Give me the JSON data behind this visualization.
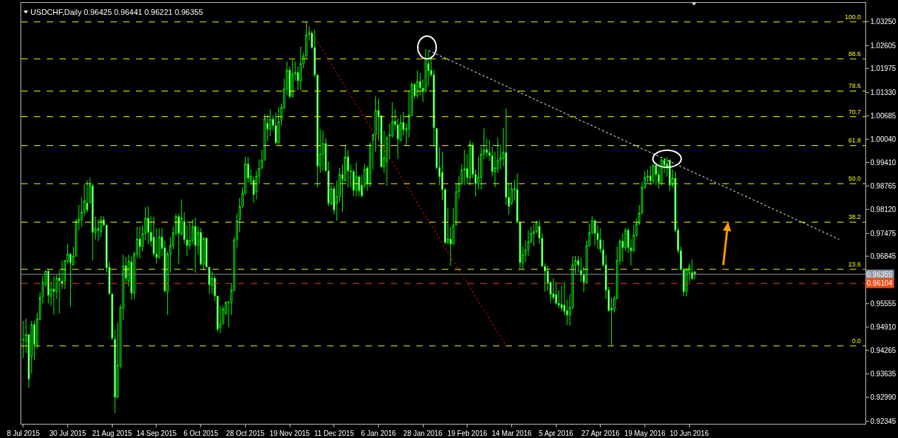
{
  "chart_data": {
    "type": "candlestick",
    "title": "USDCHF,Daily 0.96425 0.96441 0.96221 0.96355",
    "color": "#00ff00",
    "categories": [
      "8 Jul 2015",
      null,
      null,
      null,
      null,
      null,
      null,
      null,
      null,
      null,
      null,
      null,
      null,
      null,
      null,
      null,
      "30 Jul 2015",
      null,
      null,
      null,
      null,
      null,
      null,
      null,
      null,
      null,
      null,
      null,
      null,
      null,
      null,
      null,
      "21 Aug 2015",
      null,
      null,
      null,
      null,
      null,
      null,
      null,
      null,
      null,
      null,
      null,
      null,
      null,
      null,
      null,
      "14 Sep 2015",
      null,
      null,
      null,
      null,
      null,
      null,
      null,
      null,
      null,
      null,
      null,
      null,
      null,
      null,
      null,
      "6 Oct 2015",
      null,
      null,
      null,
      null,
      null,
      null,
      null,
      null,
      null,
      null,
      null,
      null,
      null,
      null,
      null,
      "28 Oct 2015",
      null,
      null,
      null,
      null,
      null,
      null,
      null,
      null,
      null,
      null,
      null,
      null,
      null,
      null,
      null,
      "19 Nov 2015",
      null,
      null,
      null,
      null,
      null,
      null,
      null,
      null,
      null,
      null,
      null,
      null,
      null,
      null,
      null,
      "11 Dec 2015",
      null,
      null,
      null,
      null,
      null,
      null,
      null,
      null,
      null,
      null,
      null,
      null,
      null,
      null,
      null,
      "6 Jan 2016",
      null,
      null,
      null,
      null,
      null,
      null,
      null,
      null,
      null,
      null,
      null,
      null,
      null,
      null,
      null,
      "28 Jan 2016",
      null,
      null,
      null,
      null,
      null,
      null,
      null,
      null,
      null,
      null,
      null,
      null,
      null,
      null,
      null,
      "19 Feb 2016",
      null,
      null,
      null,
      null,
      null,
      null,
      null,
      null,
      null,
      null,
      null,
      null,
      null,
      null,
      null,
      "14 Mar 2016",
      null,
      null,
      null,
      null,
      null,
      null,
      null,
      null,
      null,
      null,
      null,
      null,
      null,
      null,
      null,
      "5 Apr 2016",
      null,
      null,
      null,
      null,
      null,
      null,
      null,
      null,
      null,
      null,
      null,
      null,
      null,
      null,
      null,
      "27 Apr 2016",
      null,
      null,
      null,
      null,
      null,
      null,
      null,
      null,
      null,
      null,
      null,
      null,
      null,
      null,
      null,
      "19 May 2016",
      null,
      null,
      null,
      null,
      null,
      null,
      null,
      null,
      null,
      null,
      null,
      null,
      null,
      null,
      null,
      "10 Jun 2016",
      null,
      null,
      null,
      null,
      null,
      null,
      null,
      null,
      null,
      null,
      null,
      null,
      null,
      null,
      null,
      null,
      null,
      null,
      null,
      null,
      null,
      null,
      null,
      null,
      null,
      null,
      null,
      null,
      null,
      null,
      null,
      null,
      null,
      null,
      null,
      null,
      null,
      null,
      null,
      null,
      null,
      null,
      null,
      null,
      null,
      null,
      null,
      null,
      null,
      null,
      null,
      null,
      null,
      null,
      null,
      null,
      null,
      null,
      null,
      null,
      null,
      null,
      null
    ],
    "ohlc": [
      [
        0.9456,
        0.9508,
        0.9407,
        0.9458
      ],
      [
        0.9452,
        0.9514,
        0.9421,
        0.9471
      ],
      [
        0.9471,
        0.9471,
        0.9326,
        0.9349
      ],
      [
        0.9411,
        0.9508,
        0.9364,
        0.9498
      ],
      [
        0.9498,
        0.9508,
        0.9401,
        0.9444
      ],
      [
        0.9444,
        0.953,
        0.9433,
        0.9514
      ],
      [
        0.9512,
        0.9586,
        0.951,
        0.9572
      ],
      [
        0.9575,
        0.9631,
        0.9556,
        0.9614
      ],
      [
        0.9607,
        0.9646,
        0.9601,
        0.9644
      ],
      [
        0.9644,
        0.9648,
        0.9556,
        0.9578
      ],
      [
        0.9575,
        0.9615,
        0.9549,
        0.9595
      ],
      [
        0.9595,
        0.9631,
        0.9524,
        0.9588
      ],
      [
        0.9588,
        0.9634,
        0.9568,
        0.9625
      ],
      [
        0.9625,
        0.9646,
        0.9528,
        0.9617
      ],
      [
        0.9617,
        0.9673,
        0.9595,
        0.9609
      ],
      [
        0.9617,
        0.9673,
        0.9595,
        0.9673
      ],
      [
        0.9672,
        0.9718,
        0.9665,
        0.9691
      ],
      [
        0.9691,
        0.9692,
        0.9547,
        0.9667
      ],
      [
        0.9661,
        0.9711,
        0.9659,
        0.9685
      ],
      [
        0.9685,
        0.9788,
        0.9685,
        0.978
      ],
      [
        0.978,
        0.9825,
        0.9756,
        0.9786
      ],
      [
        0.9784,
        0.9846,
        0.9766,
        0.9805
      ],
      [
        0.9805,
        0.9881,
        0.9795,
        0.9836
      ],
      [
        0.983,
        0.9892,
        0.9805,
        0.9811
      ],
      [
        0.983,
        0.99,
        0.983,
        0.9879
      ],
      [
        0.9877,
        0.9883,
        0.9673,
        0.975
      ],
      [
        0.975,
        0.9793,
        0.973,
        0.976
      ],
      [
        0.976,
        0.9786,
        0.9726,
        0.9756
      ],
      [
        0.9752,
        0.9795,
        0.9737,
        0.9784
      ],
      [
        0.9784,
        0.9793,
        0.9766,
        0.977
      ],
      [
        0.977,
        0.977,
        0.964,
        0.9653
      ],
      [
        0.9655,
        0.9669,
        0.9582,
        0.9582
      ],
      [
        0.9582,
        0.9582,
        0.9456,
        0.9461
      ],
      [
        0.9458,
        0.9485,
        0.9256,
        0.9299
      ],
      [
        0.9299,
        0.9504,
        0.9299,
        0.9388
      ],
      [
        0.9386,
        0.9553,
        0.9378,
        0.9545
      ],
      [
        0.9543,
        0.9689,
        0.951,
        0.9659
      ],
      [
        0.9659,
        0.9683,
        0.9611,
        0.9625
      ],
      [
        0.9617,
        0.9689,
        0.9601,
        0.9671
      ],
      [
        0.9669,
        0.9685,
        0.9566,
        0.9584
      ],
      [
        0.9584,
        0.9698,
        0.9568,
        0.9691
      ],
      [
        0.9691,
        0.9766,
        0.9679,
        0.9732
      ],
      [
        0.9732,
        0.9766,
        0.9679,
        0.9711
      ],
      [
        0.9712,
        0.977,
        0.9698,
        0.9747
      ],
      [
        0.9747,
        0.9819,
        0.9728,
        0.9789
      ],
      [
        0.9789,
        0.9821,
        0.9718,
        0.975
      ],
      [
        0.975,
        0.9795,
        0.9712,
        0.9726
      ],
      [
        0.9737,
        0.9793,
        0.9685,
        0.9691
      ],
      [
        0.9691,
        0.9762,
        0.9665,
        0.9681
      ],
      [
        0.9681,
        0.9762,
        0.9679,
        0.9737
      ],
      [
        0.9737,
        0.9762,
        0.9685,
        0.9706
      ],
      [
        0.9708,
        0.9728,
        0.9586,
        0.959
      ],
      [
        0.9588,
        0.9698,
        0.9524,
        0.9691
      ],
      [
        0.9691,
        0.9737,
        0.964,
        0.9714
      ],
      [
        0.9714,
        0.9766,
        0.9704,
        0.9749
      ],
      [
        0.9749,
        0.9801,
        0.9741,
        0.9793
      ],
      [
        0.9793,
        0.9801,
        0.9663,
        0.9747
      ],
      [
        0.9745,
        0.984,
        0.9741,
        0.9789
      ],
      [
        0.978,
        0.9805,
        0.9718,
        0.973
      ],
      [
        0.973,
        0.977,
        0.9685,
        0.9714
      ],
      [
        0.9714,
        0.9776,
        0.9704,
        0.9728
      ],
      [
        0.9728,
        0.9786,
        0.9718,
        0.9766
      ],
      [
        0.9766,
        0.9791,
        0.964,
        0.9714
      ],
      [
        0.9714,
        0.9766,
        0.9689,
        0.975
      ],
      [
        0.975,
        0.9762,
        0.9659,
        0.9663
      ],
      [
        0.9663,
        0.9737,
        0.9646,
        0.9734
      ],
      [
        0.9734,
        0.9737,
        0.9655,
        0.9655
      ],
      [
        0.9655,
        0.9655,
        0.9582,
        0.9607
      ],
      [
        0.9605,
        0.9644,
        0.9582,
        0.9625
      ],
      [
        0.9625,
        0.9631,
        0.9562,
        0.9576
      ],
      [
        0.9576,
        0.9576,
        0.9479,
        0.9485
      ],
      [
        0.9489,
        0.9549,
        0.9475,
        0.95
      ],
      [
        0.95,
        0.9549,
        0.95,
        0.9541
      ],
      [
        0.9528,
        0.9562,
        0.9524,
        0.9559
      ],
      [
        0.9559,
        0.9562,
        0.9491,
        0.956
      ],
      [
        0.9559,
        0.9611,
        0.9524,
        0.9592
      ],
      [
        0.959,
        0.9737,
        0.959,
        0.973
      ],
      [
        0.973,
        0.9801,
        0.9708,
        0.9782
      ],
      [
        0.9786,
        0.9844,
        0.975,
        0.9821
      ],
      [
        0.9821,
        0.9873,
        0.9817,
        0.9857
      ],
      [
        0.9857,
        0.9956,
        0.9853,
        0.9937
      ],
      [
        0.9937,
        0.9956,
        0.9886,
        0.9898
      ],
      [
        0.9888,
        0.9922,
        0.9879,
        0.9904
      ],
      [
        0.9892,
        0.9902,
        0.983,
        0.9853
      ],
      [
        0.9861,
        0.9918,
        0.984,
        0.9904
      ],
      [
        0.9904,
        0.995,
        0.9883,
        0.9925
      ],
      [
        0.9927,
        0.9976,
        0.9922,
        0.9947
      ],
      [
        0.9947,
        1.0073,
        0.9947,
        1.0061
      ],
      [
        1.0048,
        1.0071,
        0.9999,
        1.0032
      ],
      [
        1.0032,
        1.0085,
        1.0013,
        1.0059
      ],
      [
        1.0059,
        1.0069,
        1.0028,
        1.0042
      ],
      [
        1.0042,
        1.0077,
        0.9989,
        0.9995
      ],
      [
        0.9995,
        1.0092,
        0.9989,
        1.0053
      ],
      [
        1.0057,
        1.0102,
        1.0042,
        1.0092
      ],
      [
        1.009,
        1.017,
        1.0086,
        1.0142
      ],
      [
        1.0142,
        1.0217,
        1.0125,
        1.0193
      ],
      [
        1.0193,
        1.0203,
        1.0116,
        1.0121
      ],
      [
        1.0121,
        1.0222,
        1.0119,
        1.0183
      ],
      [
        1.0183,
        1.0217,
        1.0164,
        1.0187
      ],
      [
        1.0187,
        1.0203,
        1.0138,
        1.0164
      ],
      [
        1.0164,
        1.0257,
        1.0138,
        1.0211
      ],
      [
        1.0211,
        1.0241,
        1.0199,
        1.0232
      ],
      [
        1.0232,
        1.0325,
        1.0226,
        1.029
      ],
      [
        1.029,
        1.0313,
        1.0275,
        1.0294
      ],
      [
        1.0294,
        1.03,
        1.0251,
        1.0255
      ],
      [
        1.0255,
        1.0304,
        1.0174,
        1.018
      ],
      [
        1.018,
        1.018,
        0.9873,
        0.9931
      ],
      [
        0.9931,
        1.0032,
        0.9912,
        0.9964
      ],
      [
        0.9964,
        1.0028,
        0.9918,
        0.9993
      ],
      [
        0.9993,
        1.0007,
        0.9916,
        0.9918
      ],
      [
        0.9918,
        0.9943,
        0.9821,
        0.9829
      ],
      [
        0.9827,
        0.9879,
        0.9825,
        0.9869
      ],
      [
        0.9869,
        0.9879,
        0.9799,
        0.9811
      ],
      [
        0.983,
        0.9892,
        0.9782,
        0.9848
      ],
      [
        0.9848,
        0.9926,
        0.9834,
        0.9908
      ],
      [
        0.9908,
        0.9935,
        0.9805,
        0.9896
      ],
      [
        0.9892,
        0.9989,
        0.9886,
        0.9956
      ],
      [
        0.9956,
        0.9974,
        0.9873,
        0.9918
      ],
      [
        0.9918,
        0.9935,
        0.9873,
        0.9916
      ],
      [
        0.9916,
        0.9922,
        0.9849,
        0.9865
      ],
      [
        0.9865,
        0.9941,
        0.9848,
        0.9902
      ],
      [
        0.9902,
        0.9906,
        0.9849,
        0.9863
      ],
      [
        0.9879,
        0.9908,
        0.9848,
        0.9849
      ],
      [
        0.9877,
        0.9937,
        0.9871,
        0.9922
      ],
      [
        0.9926,
        0.9931,
        0.9863,
        0.9883
      ],
      [
        0.9883,
        0.9995,
        0.9873,
        0.9989
      ],
      [
        1.0003,
        1.0019,
        0.9922,
        1.0017
      ],
      [
        1.0017,
        1.0121,
        0.997,
        1.0083
      ],
      [
        1.0083,
        1.0116,
        0.9999,
        1.0067
      ],
      [
        1.0069,
        1.0069,
        0.9927,
        0.9929
      ],
      [
        0.9929,
        1.0028,
        0.9912,
        0.9954
      ],
      [
        0.9943,
        1.0013,
        0.9877,
        1.0009
      ],
      [
        1.0013,
        1.0048,
        0.995,
        1.0017
      ],
      [
        1.0013,
        1.0106,
        1.0009,
        1.0053
      ],
      [
        1.0053,
        1.0086,
        1.0028,
        1.0044
      ],
      [
        1.0044,
        1.0061,
        0.995,
        1.0005
      ],
      [
        1.0001,
        1.0071,
        0.9999,
        1.005
      ],
      [
        1.005,
        1.0079,
        1.0015,
        1.003
      ],
      [
        1.003,
        1.0048,
        0.9987,
        1.0034
      ],
      [
        1.0034,
        1.0138,
        1.0009,
        1.0071
      ],
      [
        1.0069,
        1.016,
        1.0067,
        1.0154
      ],
      [
        1.0154,
        1.0158,
        1.0116,
        1.0123
      ],
      [
        1.0123,
        1.0193,
        1.0116,
        1.0162
      ],
      [
        1.0162,
        1.0185,
        1.0125,
        1.0144
      ],
      [
        1.0144,
        1.0168,
        1.0106,
        1.0135
      ],
      [
        1.0135,
        1.0251,
        1.0133,
        1.0226
      ],
      [
        1.0211,
        1.0245,
        1.015,
        1.0191
      ],
      [
        1.0193,
        1.0232,
        1.0174,
        1.018
      ],
      [
        1.018,
        1.0193,
        0.9984,
        1.0036
      ],
      [
        1.0034,
        1.0034,
        0.9922,
        0.9927
      ],
      [
        0.9927,
        0.9982,
        0.9879,
        0.9902
      ],
      [
        0.9914,
        0.997,
        0.9838,
        0.9867
      ],
      [
        0.9867,
        0.9871,
        0.9718,
        0.9722
      ],
      [
        0.9722,
        0.9817,
        0.9718,
        0.9732
      ],
      [
        0.9732,
        0.9766,
        0.9659,
        0.9718
      ],
      [
        0.9718,
        0.9817,
        0.9718,
        0.977
      ],
      [
        0.977,
        0.9883,
        0.977,
        0.9861
      ],
      [
        0.9861,
        0.9904,
        0.9842,
        0.9883
      ],
      [
        0.9883,
        0.9937,
        0.9879,
        0.992
      ],
      [
        0.992,
        0.9976,
        0.9879,
        0.9924
      ],
      [
        0.9924,
        0.9964,
        0.9883,
        0.99
      ],
      [
        0.99,
        1.0001,
        0.9877,
        0.9991
      ],
      [
        0.9987,
        0.9995,
        0.9898,
        0.9908
      ],
      [
        0.9908,
        0.9922,
        0.9848,
        0.9883
      ],
      [
        0.9883,
        0.9956,
        0.9867,
        0.99
      ],
      [
        0.99,
        0.9984,
        0.9867,
        0.9964
      ],
      [
        0.9964,
        1.0034,
        0.995,
        0.9976
      ],
      [
        0.9976,
        1.0007,
        0.9956,
        0.9968
      ],
      [
        0.9968,
        1.0003,
        0.9945,
        0.996
      ],
      [
        0.996,
        0.9984,
        0.9902,
        0.9916
      ],
      [
        0.9916,
        0.997,
        0.9873,
        0.9927
      ],
      [
        0.9924,
        1.0009,
        0.9912,
        0.9947
      ],
      [
        0.9947,
        0.9989,
        0.9922,
        0.9954
      ],
      [
        0.9952,
        1.0036,
        0.9931,
        0.9968
      ],
      [
        0.9968,
        1.0088,
        0.9825,
        0.9846
      ],
      [
        0.9846,
        0.9885,
        0.9799,
        0.9821
      ],
      [
        0.983,
        0.9887,
        0.9825,
        0.9869
      ],
      [
        0.9869,
        0.9894,
        0.9838,
        0.9867
      ],
      [
        0.9867,
        0.991,
        0.9778,
        0.9778
      ],
      [
        0.9778,
        0.9778,
        0.965,
        0.9667
      ],
      [
        0.9667,
        0.9712,
        0.965,
        0.9689
      ],
      [
        0.9689,
        0.9728,
        0.9669,
        0.9702
      ],
      [
        0.9702,
        0.9756,
        0.9685,
        0.9724
      ],
      [
        0.9724,
        0.9766,
        0.972,
        0.9747
      ],
      [
        0.9747,
        0.9772,
        0.9712,
        0.9752
      ],
      [
        0.9752,
        0.9782,
        0.9747,
        0.9778
      ],
      [
        0.9766,
        0.9782,
        0.9718,
        0.9734
      ],
      [
        0.9734,
        0.9747,
        0.9657,
        0.9657
      ],
      [
        0.9657,
        0.9665,
        0.9588,
        0.9644
      ],
      [
        0.9644,
        0.9659,
        0.9592,
        0.9611
      ],
      [
        0.9614,
        0.9615,
        0.9558,
        0.958
      ],
      [
        0.9582,
        0.9625,
        0.9566,
        0.9572
      ],
      [
        0.958,
        0.9615,
        0.9553,
        0.9556
      ],
      [
        0.9556,
        0.9592,
        0.9543,
        0.9551
      ],
      [
        0.9553,
        0.9605,
        0.9534,
        0.9543
      ],
      [
        0.9551,
        0.9615,
        0.9524,
        0.9534
      ],
      [
        0.9536,
        0.9566,
        0.9497,
        0.9524
      ],
      [
        0.9524,
        0.9582,
        0.9495,
        0.9545
      ],
      [
        0.9545,
        0.9685,
        0.9539,
        0.9661
      ],
      [
        0.9661,
        0.9685,
        0.9636,
        0.9673
      ],
      [
        0.9673,
        0.9685,
        0.964,
        0.9661
      ],
      [
        0.9646,
        0.9681,
        0.9615,
        0.9634
      ],
      [
        0.9634,
        0.9657,
        0.9586,
        0.9614
      ],
      [
        0.9614,
        0.9728,
        0.9611,
        0.9714
      ],
      [
        0.9714,
        0.9774,
        0.9711,
        0.9749
      ],
      [
        0.9749,
        0.9795,
        0.9745,
        0.9782
      ],
      [
        0.9782,
        0.9786,
        0.9714,
        0.9747
      ],
      [
        0.9747,
        0.977,
        0.9704,
        0.973
      ],
      [
        0.973,
        0.9762,
        0.9694,
        0.9704
      ],
      [
        0.9702,
        0.9728,
        0.9655,
        0.9661
      ],
      [
        0.9661,
        0.9689,
        0.9568,
        0.9592
      ],
      [
        0.9592,
        0.9601,
        0.9534,
        0.9536
      ],
      [
        0.9543,
        0.9572,
        0.944,
        0.9538
      ],
      [
        0.9538,
        0.9576,
        0.953,
        0.957
      ],
      [
        0.957,
        0.9712,
        0.9566,
        0.9673
      ],
      [
        0.9673,
        0.9732,
        0.9661,
        0.9726
      ],
      [
        0.9726,
        0.9747,
        0.9669,
        0.9708
      ],
      [
        0.9708,
        0.9762,
        0.9698,
        0.9756
      ],
      [
        0.9756,
        0.9762,
        0.9694,
        0.9708
      ],
      [
        0.9708,
        0.9732,
        0.9659,
        0.97
      ],
      [
        0.97,
        0.977,
        0.9696,
        0.9743
      ],
      [
        0.9743,
        0.9789,
        0.9737,
        0.9774
      ],
      [
        0.9774,
        0.9825,
        0.977,
        0.9803
      ],
      [
        0.9803,
        0.9887,
        0.9799,
        0.9873
      ],
      [
        0.9873,
        0.9918,
        0.9869,
        0.99
      ],
      [
        0.99,
        0.9922,
        0.9886,
        0.9904
      ],
      [
        0.9904,
        0.9931,
        0.9879,
        0.989
      ],
      [
        0.989,
        0.9937,
        0.9883,
        0.9933
      ],
      [
        0.9933,
        0.9941,
        0.9879,
        0.9908
      ],
      [
        0.9908,
        0.9931,
        0.9869,
        0.9886
      ],
      [
        0.9886,
        0.9956,
        0.9879,
        0.9947
      ],
      [
        0.9947,
        0.9952,
        0.9912,
        0.9933
      ],
      [
        0.9937,
        0.9956,
        0.9902,
        0.9925
      ],
      [
        0.9947,
        0.995,
        0.9863,
        0.9879
      ],
      [
        0.9879,
        0.9922,
        0.9873,
        0.9898
      ],
      [
        0.9898,
        0.9916,
        0.975,
        0.9756
      ],
      [
        0.9756,
        0.9764,
        0.9692,
        0.97
      ],
      [
        0.97,
        0.9712,
        0.9646,
        0.9648
      ],
      [
        0.9648,
        0.9653,
        0.9576,
        0.9588
      ],
      [
        0.9588,
        0.9653,
        0.9575,
        0.9648
      ],
      [
        0.964,
        0.9665,
        0.9614,
        0.9657
      ],
      [
        0.964,
        0.9677,
        0.9621,
        0.9623
      ],
      [
        0.96425,
        0.96441,
        0.96221,
        0.96355
      ],
      null,
      null,
      null,
      null,
      null,
      null,
      null,
      null,
      null,
      null,
      null,
      null,
      null,
      null,
      null,
      null,
      null,
      null,
      null,
      null,
      null,
      null,
      null,
      null,
      null,
      null,
      null,
      null,
      null,
      null,
      null,
      null,
      null,
      null,
      null,
      null,
      null,
      null,
      null,
      null,
      null,
      null,
      null,
      null,
      null,
      null,
      null,
      null,
      null,
      null,
      null,
      null,
      null,
      null,
      null,
      null,
      null,
      null,
      null,
      null,
      null
    ],
    "series": [
      {
        "type": "line",
        "color": "#ff0000",
        "line_style": "dotted",
        "values": [
          null,
          null,
          null,
          null,
          null,
          null,
          null,
          null,
          null,
          null,
          null,
          null,
          null,
          null,
          null,
          null,
          null,
          null,
          null,
          null,
          null,
          null,
          null,
          null,
          null,
          null,
          null,
          null,
          null,
          null,
          null,
          null,
          null,
          null,
          null,
          null,
          null,
          null,
          null,
          null,
          null,
          null,
          null,
          null,
          null,
          null,
          null,
          null,
          null,
          null,
          null,
          null,
          null,
          null,
          null,
          null,
          null,
          null,
          null,
          null,
          null,
          null,
          null,
          null,
          null,
          null,
          null,
          null,
          null,
          null,
          null,
          null,
          null,
          null,
          null,
          null,
          null,
          null,
          null,
          null,
          null,
          null,
          null,
          null,
          null,
          null,
          null,
          null,
          null,
          null,
          null,
          null,
          null,
          null,
          null,
          null,
          null,
          null,
          null,
          null,
          null,
          null,
          1.0319,
          null,
          null,
          null,
          null,
          null,
          null,
          null,
          null,
          null,
          null,
          null,
          null,
          null,
          null,
          null,
          null,
          null,
          null,
          null,
          null,
          null,
          null,
          null,
          null,
          null,
          null,
          null,
          null,
          null,
          null,
          null,
          null,
          null,
          null,
          null,
          null,
          null,
          null,
          null,
          null,
          null,
          null,
          null,
          null,
          null,
          null,
          null,
          null,
          null,
          null,
          null,
          null,
          null,
          null,
          null,
          null,
          null,
          null,
          null,
          null,
          null,
          null,
          null,
          null,
          null,
          null,
          null,
          null,
          null,
          null,
          null,
          0.944,
          null,
          null,
          null,
          null,
          null,
          null,
          null,
          null,
          null,
          null,
          null,
          null,
          null,
          null,
          null,
          null,
          null,
          null,
          null,
          null,
          null,
          null,
          null,
          null,
          null,
          null,
          null,
          null,
          null,
          null,
          null,
          null,
          null,
          null,
          null,
          null,
          null,
          null,
          null,
          null,
          null,
          null,
          null,
          null,
          null,
          null,
          null,
          null,
          null,
          null,
          null,
          null,
          null,
          null,
          null,
          null,
          null,
          null,
          null,
          null,
          null,
          null,
          null,
          null,
          null,
          null,
          null,
          null,
          null,
          null,
          null,
          null,
          null,
          null,
          null,
          null,
          null,
          null,
          null,
          null,
          null,
          null,
          null,
          null,
          null,
          null,
          null,
          null,
          null,
          null,
          null,
          null,
          null,
          null,
          null,
          null,
          null,
          null,
          null,
          null,
          null,
          null,
          null,
          null,
          null,
          null,
          null,
          null,
          null,
          null,
          null,
          null,
          null,
          null,
          null,
          null,
          null,
          null,
          null,
          null,
          null,
          null,
          null,
          null,
          null,
          null,
          null,
          null,
          null
        ]
      },
      {
        "type": "line",
        "color": "#ffffff",
        "line_style": "dotted",
        "values": [
          null,
          null,
          null,
          null,
          null,
          null,
          null,
          null,
          null,
          null,
          null,
          null,
          null,
          null,
          null,
          null,
          null,
          null,
          null,
          null,
          null,
          null,
          null,
          null,
          null,
          null,
          null,
          null,
          null,
          null,
          null,
          null,
          null,
          null,
          null,
          null,
          null,
          null,
          null,
          null,
          null,
          null,
          null,
          null,
          null,
          null,
          null,
          null,
          null,
          null,
          null,
          null,
          null,
          null,
          null,
          null,
          null,
          null,
          null,
          null,
          null,
          null,
          null,
          null,
          null,
          null,
          null,
          null,
          null,
          null,
          null,
          null,
          null,
          null,
          null,
          null,
          null,
          null,
          null,
          null,
          null,
          null,
          null,
          null,
          null,
          null,
          null,
          null,
          null,
          null,
          null,
          null,
          null,
          null,
          null,
          null,
          null,
          null,
          null,
          null,
          null,
          null,
          null,
          null,
          null,
          null,
          null,
          null,
          null,
          null,
          null,
          null,
          null,
          null,
          null,
          null,
          null,
          null,
          null,
          null,
          null,
          null,
          null,
          null,
          null,
          null,
          null,
          null,
          null,
          null,
          null,
          null,
          null,
          null,
          null,
          null,
          null,
          null,
          null,
          null,
          null,
          null,
          null,
          null,
          null,
          null,
          1.0247,
          null,
          null,
          null,
          null,
          null,
          null,
          null,
          null,
          null,
          null,
          null,
          null,
          null,
          null,
          null,
          null,
          null,
          null,
          null,
          null,
          null,
          null,
          null,
          null,
          null,
          null,
          null,
          null,
          null,
          null,
          null,
          null,
          null,
          null,
          null,
          null,
          null,
          null,
          null,
          null,
          null,
          null,
          null,
          null,
          null,
          null,
          null,
          null,
          null,
          null,
          null,
          null,
          null,
          null,
          null,
          null,
          null,
          null,
          null,
          null,
          null,
          null,
          null,
          null,
          null,
          null,
          null,
          null,
          null,
          null,
          null,
          null,
          null,
          null,
          null,
          null,
          null,
          null,
          null,
          null,
          null,
          null,
          null,
          null,
          null,
          null,
          null,
          null,
          null,
          null,
          null,
          null,
          null,
          null,
          null,
          null,
          null,
          null,
          null,
          null,
          null,
          null,
          null,
          null,
          null,
          null,
          null,
          null,
          null,
          null,
          null,
          null,
          null,
          null,
          null,
          null,
          null,
          null,
          null,
          null,
          null,
          null,
          null,
          null,
          null,
          null,
          null,
          null,
          null,
          null,
          null,
          null,
          null,
          null,
          null,
          null,
          null,
          null,
          null,
          null,
          null,
          null,
          null,
          null,
          null,
          null,
          null,
          0.9731,
          null,
          null,
          null,
          null,
          null,
          null,
          null,
          null,
          null
        ]
      }
    ],
    "ylim": [
      0.9227,
      1.0377
    ],
    "yticks": [
      {
        "value": 1.0325,
        "label": "1.03250"
      },
      {
        "value": 1.02605,
        "label": "1.02605"
      },
      {
        "value": 1.01975,
        "label": "1.01975"
      },
      {
        "value": 1.0133,
        "label": "1.01330"
      },
      {
        "value": 1.00685,
        "label": "1.00685"
      },
      {
        "value": 1.0004,
        "label": "1.00040"
      },
      {
        "value": 0.9941,
        "label": "0.99410"
      },
      {
        "value": 0.98765,
        "label": "0.98765"
      },
      {
        "value": 0.9812,
        "label": "0.98120"
      },
      {
        "value": 0.97475,
        "label": "0.97475"
      },
      {
        "value": 0.96845,
        "label": "0.96845"
      },
      {
        "value": 0.95555,
        "label": "0.95555"
      },
      {
        "value": 0.9491,
        "label": "0.94910"
      },
      {
        "value": 0.94265,
        "label": "0.94265"
      },
      {
        "value": 0.93635,
        "label": "0.93635"
      },
      {
        "value": 0.9299,
        "label": "0.92990"
      },
      {
        "value": 0.92345,
        "label": "0.92345"
      }
    ],
    "ref_lines": [
      {
        "axis": "y",
        "value": 1.0325,
        "color": "#ffff00",
        "line_style": "dashed"
      },
      {
        "axis": "y",
        "value": 1.0224,
        "color": "#ffff00",
        "line_style": "dashed"
      },
      {
        "axis": "y",
        "value": 1.0136,
        "color": "#ffff00",
        "line_style": "dashed"
      },
      {
        "axis": "y",
        "value": 1.0066,
        "color": "#ffff00",
        "line_style": "dashed"
      },
      {
        "axis": "y",
        "value": 0.9987,
        "color": "#ffff00",
        "line_style": "dashed"
      },
      {
        "axis": "y",
        "value": 0.9883,
        "color": "#ffff00",
        "line_style": "dashed"
      },
      {
        "axis": "y",
        "value": 0.9778,
        "color": "#ffff00",
        "line_style": "dashed"
      },
      {
        "axis": "y",
        "value": 0.9649,
        "color": "#ffff00",
        "line_style": "dashed"
      },
      {
        "axis": "y",
        "value": 0.944,
        "color": "#ffff00",
        "line_style": "dashed"
      },
      {
        "axis": "y",
        "value": 0.96355,
        "label": "0.96355",
        "color": "#8c96a0",
        "line_style": "solid"
      },
      {
        "axis": "y",
        "value": 0.96104,
        "label": "0.96104",
        "color": "#f04a14",
        "line_style": "dashed"
      }
    ],
    "annotations": [
      {
        "text": "100.0",
        "y": 1.0325
      },
      {
        "text": "88.6",
        "y": 1.0224
      },
      {
        "text": "78.6",
        "y": 1.0136
      },
      {
        "text": "70.7",
        "y": 1.0066
      },
      {
        "text": "61.8",
        "y": 0.9987
      },
      {
        "text": "50.0",
        "y": 0.9883
      },
      {
        "text": "38.2",
        "y": 0.9778
      },
      {
        "text": "23.6",
        "y": 0.9649
      },
      {
        "text": "0.0",
        "y": 0.944
      }
    ]
  }
}
